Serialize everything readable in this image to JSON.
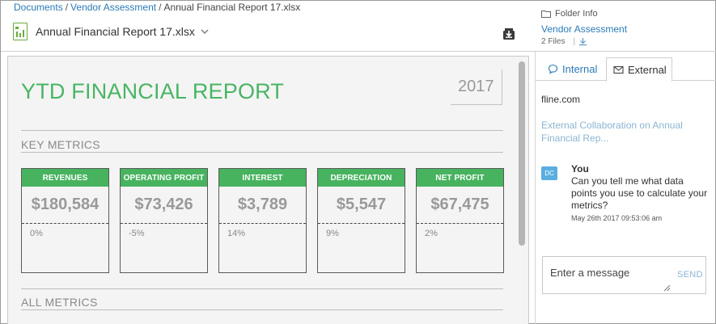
{
  "breadcrumb": {
    "items": [
      "Documents",
      "Vendor Assessment",
      "Annual Financial Report 17.xlsx"
    ],
    "separator": "/"
  },
  "file": {
    "name": "Annual Financial Report 17.xlsx",
    "icon": "excel-file-icon"
  },
  "folder_info": {
    "label": "Folder Info",
    "folder_name": "Vendor Assessment",
    "file_count": "2 Files"
  },
  "report": {
    "title": "YTD FINANCIAL REPORT",
    "year": "2017",
    "key_metrics_label": "KEY METRICS",
    "all_metrics_label": "ALL METRICS",
    "accent_color": "#47b35f",
    "metrics": [
      {
        "label": "REVENUES",
        "value": "$180,584",
        "change": "0%"
      },
      {
        "label": "OPERATING PROFIT",
        "value": "$73,426",
        "change": "-5%"
      },
      {
        "label": "INTEREST",
        "value": "$3,789",
        "change": "14%"
      },
      {
        "label": "DEPRECIATION",
        "value": "$5,547",
        "change": "9%"
      },
      {
        "label": "NET PROFIT",
        "value": "$67,475",
        "change": "2%"
      }
    ]
  },
  "panel": {
    "tabs": [
      {
        "label": "Internal",
        "icon": "speech-bubble-icon",
        "active": false
      },
      {
        "label": "External",
        "icon": "envelope-icon",
        "active": true
      }
    ],
    "domain": "fline.com",
    "collaboration_title": "External Collaboration on Annual Financial Rep...",
    "messages": [
      {
        "avatar": "DC",
        "author": "You",
        "text": "Can you tell me what data points you use to calculate your metrics?",
        "timestamp": "May 26th 2017 09:53:06 am"
      }
    ],
    "composer": {
      "placeholder": "Enter a message",
      "send_label": "SEND"
    }
  }
}
